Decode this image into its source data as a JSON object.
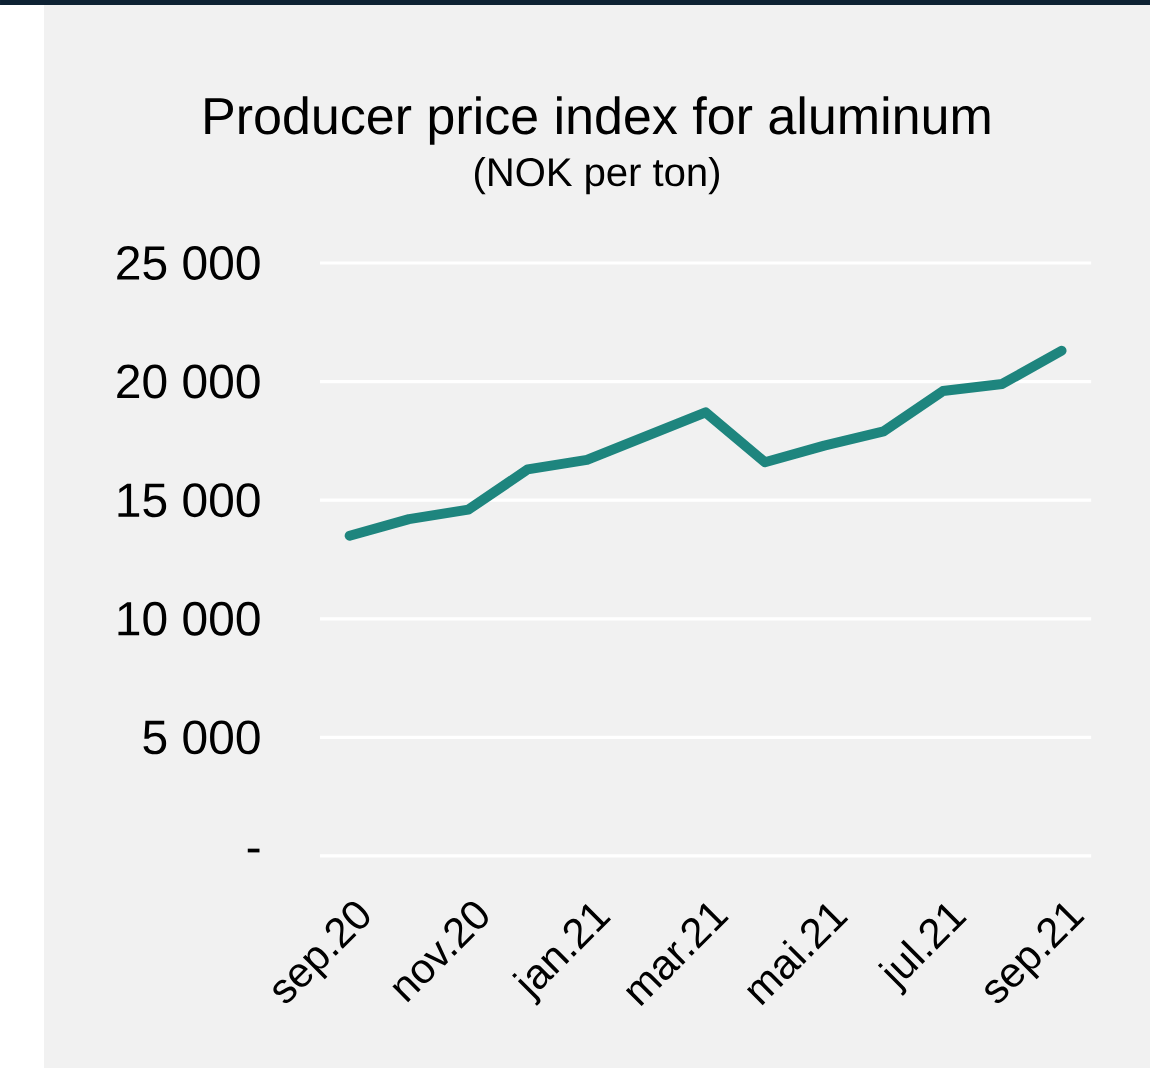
{
  "chart_data": {
    "type": "line",
    "title": "Producer price index for aluminum",
    "subtitle": "(NOK per ton)",
    "categories": [
      "sep.20",
      null,
      "nov.20",
      null,
      "jan.21",
      null,
      "mar.21",
      null,
      "mai.21",
      null,
      "jul.21",
      null,
      "sep.21"
    ],
    "series": [
      {
        "color": "#1e857e",
        "values": [
          13500,
          14200,
          14600,
          16300,
          16700,
          17700,
          18700,
          16600,
          17300,
          17900,
          19600,
          19900,
          21300
        ]
      }
    ],
    "ylim": [
      0,
      25000
    ],
    "yticks": [
      {
        "value": 0,
        "label": "-"
      },
      {
        "value": 5000,
        "label": "5 000"
      },
      {
        "value": 10000,
        "label": "10 000"
      },
      {
        "value": 15000,
        "label": "15 000"
      },
      {
        "value": 20000,
        "label": "20 000"
      },
      {
        "value": 25000,
        "label": "25 000"
      }
    ],
    "grid": "y"
  }
}
